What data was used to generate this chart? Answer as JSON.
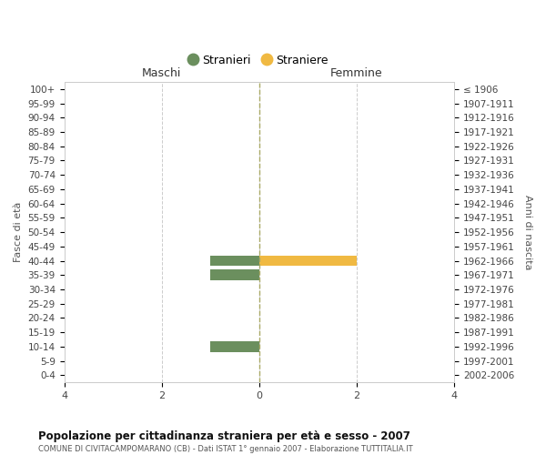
{
  "age_groups_display": [
    "100+",
    "95-99",
    "90-94",
    "85-89",
    "80-84",
    "75-79",
    "70-74",
    "65-69",
    "60-64",
    "55-59",
    "50-54",
    "45-49",
    "40-44",
    "35-39",
    "30-34",
    "25-29",
    "20-24",
    "15-19",
    "10-14",
    "5-9",
    "0-4"
  ],
  "birth_years_display": [
    "≤ 1906",
    "1907-1911",
    "1912-1916",
    "1917-1921",
    "1922-1926",
    "1927-1931",
    "1932-1936",
    "1937-1941",
    "1942-1946",
    "1947-1951",
    "1952-1956",
    "1957-1961",
    "1962-1966",
    "1967-1971",
    "1972-1976",
    "1977-1981",
    "1982-1986",
    "1987-1991",
    "1992-1996",
    "1997-2001",
    "2002-2006"
  ],
  "males_display": [
    0,
    0,
    0,
    0,
    0,
    0,
    0,
    0,
    0,
    0,
    0,
    0,
    1,
    1,
    0,
    0,
    0,
    0,
    1,
    0,
    0
  ],
  "females_display": [
    0,
    0,
    0,
    0,
    0,
    0,
    0,
    0,
    0,
    0,
    0,
    0,
    2,
    0,
    0,
    0,
    0,
    0,
    0,
    0,
    0
  ],
  "male_color": "#6b8f5e",
  "female_color": "#f0b942",
  "xlim": [
    -4,
    4
  ],
  "xticks": [
    -4,
    -2,
    0,
    2,
    4
  ],
  "xticklabels": [
    "4",
    "2",
    "0",
    "2",
    "4"
  ],
  "title": "Popolazione per cittadinanza straniera per età e sesso - 2007",
  "subtitle": "COMUNE DI CIVITACAMPOMARANO (CB) - Dati ISTAT 1° gennaio 2007 - Elaborazione TUTTITALIA.IT",
  "ylabel_left": "Fasce di età",
  "ylabel_right": "Anni di nascita",
  "label_maschi": "Maschi",
  "label_femmine": "Femmine",
  "legend_stranieri": "Stranieri",
  "legend_straniere": "Straniere",
  "bar_height": 0.75,
  "background_color": "#ffffff",
  "grid_color": "#cccccc",
  "spine_color": "#cccccc",
  "vline_color": "#aaaa66"
}
